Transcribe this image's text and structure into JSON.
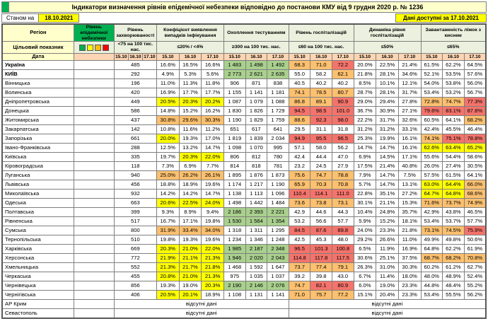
{
  "title": "Індикатори визначення рівнів епідемічної небезпеки відповідно до постанови КМУ від 9 грудня 2020 р. № 1236",
  "meta": {
    "as_of_label": "Станом на",
    "as_of_date": "18.10.2021",
    "available_label": "Дані доступні за 17.10.2021"
  },
  "header": {
    "region": "Регіон",
    "target_label": "Цільовий показник",
    "date_label": "Дата",
    "risk_level": "Рівень епідемічної небезпеки",
    "groups": [
      {
        "title": "Рівень захворюваності",
        "target": "<75 на 100 тис. нас."
      },
      {
        "title": "Коефіцієнт виявлення випадків інфікування",
        "target": "≤20% / <4%"
      },
      {
        "title": "Охоплення тестуванням",
        "target": "≥300 на 100 тис. нас."
      },
      {
        "title": "Рівень госпіталізацій",
        "target": "≤60 на 100 тис. нас."
      },
      {
        "title": "Динаміка рівня госпіталізацій",
        "target": "≤50%"
      },
      {
        "title": "Завантаженість ліжок з киснем",
        "target": "≤65%"
      }
    ],
    "dates": [
      "15.10",
      "16.10",
      "17.10"
    ]
  },
  "legend_colors": [
    "#00b050",
    "#ffff00",
    "#ffc000",
    "#ff0000"
  ],
  "palette": {
    "w": "#ffffff",
    "g": "#a9d08e",
    "y": "#ffff00",
    "o": "#fcc06f",
    "r": "#f4736b"
  },
  "rows": [
    {
      "name": "Україна",
      "bold": true,
      "incidence": "485",
      "values": [
        "16.6%",
        "16.5%",
        "16.6%",
        "1 483",
        "1 498",
        "1 492",
        "68.3",
        "71.0",
        "72.2",
        "20.0%",
        "22.5%",
        "21.4%",
        "61.5%",
        "62.2%",
        "64.5%"
      ],
      "colors": [
        "w",
        "w",
        "w",
        "g",
        "g",
        "g",
        "o",
        "o",
        "r",
        "w",
        "w",
        "w",
        "w",
        "w",
        "w"
      ]
    },
    {
      "name": "КИЇВ",
      "bold": true,
      "incidence": "292",
      "values": [
        "4.9%",
        "5.3%",
        "5.6%",
        "2 773",
        "2 621",
        "2 635",
        "55.0",
        "58.2",
        "62.1",
        "21.8%",
        "28.1%",
        "34.6%",
        "52.1%",
        "53.5%",
        "57.6%"
      ],
      "colors": [
        "w",
        "w",
        "w",
        "g",
        "g",
        "g",
        "w",
        "w",
        "o",
        "w",
        "w",
        "w",
        "w",
        "w",
        "w"
      ]
    },
    {
      "name": "Вінницька",
      "incidence": "196",
      "values": [
        "11.0%",
        "11.3%",
        "11.8%",
        "906",
        "871",
        "838",
        "40.5",
        "40.2",
        "40.2",
        "8.5%",
        "10.1%",
        "12.1%",
        "54.0%",
        "53.8%",
        "56.0%"
      ],
      "colors": [
        "w",
        "w",
        "w",
        "w",
        "w",
        "w",
        "w",
        "w",
        "w",
        "w",
        "w",
        "w",
        "w",
        "w",
        "w"
      ]
    },
    {
      "name": "Волинська",
      "incidence": "420",
      "values": [
        "16.9%",
        "17.7%",
        "17.7%",
        "1 155",
        "1 141",
        "1 181",
        "74.1",
        "78.5",
        "80.7",
        "28.7%",
        "28.1%",
        "31.7%",
        "53.4%",
        "53.2%",
        "56.7%"
      ],
      "colors": [
        "w",
        "w",
        "w",
        "w",
        "w",
        "w",
        "o",
        "o",
        "o",
        "w",
        "w",
        "w",
        "w",
        "w",
        "w"
      ]
    },
    {
      "name": "Дніпропетровська",
      "incidence": "449",
      "values": [
        "20.5%",
        "20.3%",
        "20.2%",
        "1 087",
        "1 079",
        "1 088",
        "86.8",
        "89.1",
        "90.9",
        "29.0%",
        "29.4%",
        "27.8%",
        "72.8%",
        "74.7%",
        "77.3%"
      ],
      "colors": [
        "y",
        "y",
        "y",
        "w",
        "w",
        "w",
        "o",
        "o",
        "r",
        "w",
        "w",
        "w",
        "o",
        "o",
        "r"
      ]
    },
    {
      "name": "Донецька",
      "incidence": "586",
      "values": [
        "14.8%",
        "15.2%",
        "16.2%",
        "1 830",
        "1 826",
        "1 729",
        "94.5",
        "98.5",
        "101.0",
        "36.7%",
        "30.9%",
        "27.1%",
        "79.6%",
        "83.1%",
        "87.8%"
      ],
      "colors": [
        "w",
        "w",
        "w",
        "w",
        "w",
        "w",
        "r",
        "r",
        "r",
        "w",
        "w",
        "w",
        "r",
        "r",
        "r"
      ]
    },
    {
      "name": "Житомирська",
      "incidence": "437",
      "values": [
        "30.8%",
        "29.6%",
        "30.3%",
        "1 190",
        "1 829",
        "1 759",
        "88.6",
        "92.3",
        "98.0",
        "22.2%",
        "31.7%",
        "32.6%",
        "60.5%",
        "64.1%",
        "68.2%"
      ],
      "colors": [
        "o",
        "o",
        "o",
        "w",
        "w",
        "w",
        "o",
        "r",
        "r",
        "w",
        "w",
        "w",
        "w",
        "w",
        "o"
      ]
    },
    {
      "name": "Закарпатська",
      "incidence": "142",
      "values": [
        "10.8%",
        "11.6%",
        "11.2%",
        "651",
        "617",
        "641",
        "29.5",
        "31.1",
        "31.8",
        "31.2%",
        "31.2%",
        "33.1%",
        "42.4%",
        "45.5%",
        "46.4%"
      ],
      "colors": [
        "w",
        "w",
        "w",
        "w",
        "w",
        "w",
        "w",
        "w",
        "w",
        "w",
        "w",
        "w",
        "w",
        "w",
        "w"
      ]
    },
    {
      "name": "Запорізька",
      "incidence": "661",
      "values": [
        "20.0%",
        "19.3%",
        "17.0%",
        "1 819",
        "1 839",
        "2 034",
        "94.9",
        "95.5",
        "96.5",
        "25.3%",
        "19.9%",
        "16.1%",
        "74.1%",
        "75.1%",
        "78.8%"
      ],
      "colors": [
        "y",
        "w",
        "w",
        "w",
        "w",
        "w",
        "r",
        "r",
        "r",
        "w",
        "w",
        "w",
        "o",
        "r",
        "r"
      ]
    },
    {
      "name": "Івано-Франківська",
      "incidence": "288",
      "values": [
        "12.5%",
        "13.2%",
        "14.7%",
        "1 098",
        "1 070",
        "995",
        "57.1",
        "58.0",
        "56.2",
        "14.7%",
        "14.7%",
        "16.1%",
        "62.6%",
        "63.4%",
        "65.2%"
      ],
      "colors": [
        "w",
        "w",
        "w",
        "w",
        "w",
        "w",
        "w",
        "w",
        "w",
        "w",
        "w",
        "w",
        "y",
        "y",
        "y"
      ]
    },
    {
      "name": "Київська",
      "incidence": "335",
      "values": [
        "19.7%",
        "20.3%",
        "22.0%",
        "806",
        "812",
        "780",
        "42.4",
        "44.4",
        "47.0",
        "6.9%",
        "14.5%",
        "17.1%",
        "55.6%",
        "54.4%",
        "58.6%"
      ],
      "colors": [
        "w",
        "y",
        "y",
        "w",
        "w",
        "w",
        "w",
        "w",
        "w",
        "w",
        "w",
        "w",
        "w",
        "w",
        "w"
      ]
    },
    {
      "name": "Кіровоградська",
      "incidence": "118",
      "values": [
        "7.3%",
        "6.9%",
        "7.7%",
        "814",
        "818",
        "781",
        "23.2",
        "24.5",
        "27.9",
        "17.5%",
        "21.4%",
        "40.8%",
        "26.0%",
        "27.4%",
        "30.5%"
      ],
      "colors": [
        "w",
        "w",
        "w",
        "w",
        "w",
        "w",
        "w",
        "w",
        "w",
        "w",
        "w",
        "w",
        "w",
        "w",
        "w"
      ]
    },
    {
      "name": "Луганська",
      "incidence": "940",
      "values": [
        "25.0%",
        "26.2%",
        "26.1%",
        "1 895",
        "1 876",
        "1 873",
        "75.6",
        "74.7",
        "78.8",
        "7.9%",
        "14.7%",
        "7.5%",
        "57.5%",
        "61.5%",
        "64.1%"
      ],
      "colors": [
        "o",
        "o",
        "o",
        "w",
        "w",
        "w",
        "o",
        "o",
        "o",
        "w",
        "w",
        "w",
        "w",
        "w",
        "w"
      ]
    },
    {
      "name": "Львівська",
      "incidence": "456",
      "values": [
        "18.8%",
        "18.9%",
        "19.6%",
        "1 174",
        "1 217",
        "1 190",
        "65.9",
        "70.3",
        "70.8",
        "5.7%",
        "14.7%",
        "13.1%",
        "63.0%",
        "64.4%",
        "66.0%"
      ],
      "colors": [
        "w",
        "w",
        "w",
        "w",
        "w",
        "w",
        "o",
        "o",
        "o",
        "w",
        "w",
        "w",
        "y",
        "y",
        "o"
      ]
    },
    {
      "name": "Миколаївська",
      "incidence": "932",
      "values": [
        "14.2%",
        "14.2%",
        "14.7%",
        "1 138",
        "1 113",
        "1 096",
        "110.4",
        "114.1",
        "111.0",
        "22.8%",
        "35.1%",
        "27.2%",
        "64.7%",
        "64.8%",
        "68.6%"
      ],
      "colors": [
        "w",
        "w",
        "w",
        "w",
        "w",
        "w",
        "r",
        "r",
        "r",
        "w",
        "w",
        "w",
        "y",
        "y",
        "o"
      ]
    },
    {
      "name": "Одеська",
      "incidence": "663",
      "values": [
        "20.6%",
        "22.5%",
        "24.0%",
        "1 498",
        "1 442",
        "1 484",
        "73.6",
        "73.8",
        "73.1",
        "30.1%",
        "21.1%",
        "15.3%",
        "71.6%",
        "73.7%",
        "74.9%"
      ],
      "colors": [
        "y",
        "y",
        "y",
        "w",
        "w",
        "w",
        "o",
        "o",
        "o",
        "w",
        "w",
        "w",
        "o",
        "o",
        "o"
      ]
    },
    {
      "name": "Полтавська",
      "incidence": "399",
      "values": [
        "9.3%",
        "8.9%",
        "9.4%",
        "2 186",
        "2 393",
        "2 221",
        "42.9",
        "44.6",
        "44.3",
        "10.4%",
        "24.8%",
        "35.7%",
        "42.9%",
        "43.8%",
        "46.5%"
      ],
      "colors": [
        "w",
        "w",
        "w",
        "g",
        "g",
        "g",
        "w",
        "w",
        "w",
        "w",
        "w",
        "w",
        "w",
        "w",
        "w"
      ]
    },
    {
      "name": "Рівненська",
      "incidence": "517",
      "values": [
        "16.7%",
        "17.1%",
        "19.8%",
        "1 530",
        "1 564",
        "1 354",
        "53.2",
        "56.6",
        "57.7",
        "5.9%",
        "15.2%",
        "18.1%",
        "53.4%",
        "53.7%",
        "57.7%"
      ],
      "colors": [
        "w",
        "w",
        "w",
        "g",
        "g",
        "g",
        "w",
        "w",
        "w",
        "w",
        "w",
        "w",
        "w",
        "w",
        "w"
      ]
    },
    {
      "name": "Сумська",
      "incidence": "800",
      "values": [
        "31.9%",
        "33.4%",
        "34.0%",
        "1 318",
        "1 311",
        "1 295",
        "84.5",
        "87.6",
        "89.8",
        "24.0%",
        "23.3%",
        "21.8%",
        "73.1%",
        "74.5%",
        "75.9%"
      ],
      "colors": [
        "o",
        "o",
        "o",
        "w",
        "w",
        "w",
        "r",
        "r",
        "r",
        "w",
        "w",
        "w",
        "o",
        "o",
        "r"
      ]
    },
    {
      "name": "Тернопільська",
      "incidence": "510",
      "values": [
        "19.8%",
        "19.3%",
        "19.6%",
        "1 234",
        "1 346",
        "1 248",
        "42.5",
        "45.3",
        "48.0",
        "29.2%",
        "26.6%",
        "11.0%",
        "49.9%",
        "49.8%",
        "50.6%"
      ],
      "colors": [
        "w",
        "w",
        "w",
        "w",
        "w",
        "w",
        "w",
        "w",
        "w",
        "w",
        "w",
        "w",
        "w",
        "w",
        "w"
      ]
    },
    {
      "name": "Харківська",
      "incidence": "669",
      "values": [
        "20.3%",
        "21.0%",
        "22.0%",
        "1 985",
        "2 187",
        "2 348",
        "96.5",
        "101.3",
        "100.8",
        "6.5%",
        "11.9%",
        "16.9%",
        "64.8%",
        "62.2%",
        "61.9%"
      ],
      "colors": [
        "y",
        "y",
        "y",
        "g",
        "g",
        "g",
        "r",
        "r",
        "r",
        "w",
        "w",
        "w",
        "w",
        "w",
        "w"
      ]
    },
    {
      "name": "Херсонська",
      "incidence": "772",
      "values": [
        "21.9%",
        "21.1%",
        "21.3%",
        "1 946",
        "2 020",
        "2 043",
        "114.8",
        "117.8",
        "117.5",
        "30.6%",
        "25.1%",
        "37.5%",
        "68.7%",
        "68.2%",
        "70.8%"
      ],
      "colors": [
        "y",
        "y",
        "y",
        "g",
        "g",
        "g",
        "r",
        "r",
        "r",
        "w",
        "w",
        "w",
        "o",
        "o",
        "o"
      ]
    },
    {
      "name": "Хмельницька",
      "incidence": "552",
      "values": [
        "21.3%",
        "21.7%",
        "21.8%",
        "1 468",
        "1 592",
        "1 647",
        "73.7",
        "77.4",
        "79.1",
        "26.3%",
        "31.0%",
        "30.3%",
        "60.2%",
        "61.2%",
        "62.7%"
      ],
      "colors": [
        "y",
        "y",
        "y",
        "w",
        "w",
        "w",
        "o",
        "o",
        "o",
        "w",
        "w",
        "w",
        "w",
        "w",
        "w"
      ]
    },
    {
      "name": "Черкаська",
      "incidence": "455",
      "values": [
        "20.8%",
        "21.0%",
        "21.3%",
        "975",
        "1 035",
        "1 037",
        "39.2",
        "39.8",
        "43.0",
        "6.7%",
        "11.4%",
        "18.0%",
        "48.0%",
        "48.9%",
        "52.4%"
      ],
      "colors": [
        "y",
        "y",
        "y",
        "w",
        "w",
        "w",
        "w",
        "w",
        "w",
        "w",
        "w",
        "w",
        "w",
        "w",
        "w"
      ]
    },
    {
      "name": "Чернівецька",
      "incidence": "856",
      "values": [
        "19.3%",
        "19.0%",
        "20.3%",
        "2 190",
        "2 146",
        "2 076",
        "74.7",
        "82.1",
        "80.9",
        "6.0%",
        "19.0%",
        "23.3%",
        "44.8%",
        "48.4%",
        "55.2%"
      ],
      "colors": [
        "w",
        "w",
        "y",
        "g",
        "g",
        "g",
        "o",
        "r",
        "r",
        "w",
        "w",
        "w",
        "w",
        "w",
        "w"
      ]
    },
    {
      "name": "Чернігівська",
      "incidence": "406",
      "values": [
        "20.5%",
        "20.1%",
        "18.9%",
        "1 108",
        "1 131",
        "1 141",
        "71.0",
        "75.7",
        "77.2",
        "15.1%",
        "20.4%",
        "23.3%",
        "53.4%",
        "55.5%",
        "56.2%"
      ],
      "colors": [
        "y",
        "y",
        "w",
        "w",
        "w",
        "w",
        "o",
        "o",
        "o",
        "w",
        "w",
        "w",
        "w",
        "w",
        "w"
      ]
    }
  ],
  "no_data_rows": [
    {
      "name": "АР Крим",
      "text": "відсутні дані"
    },
    {
      "name": "Севастополь",
      "text": "відсутні дані"
    }
  ]
}
